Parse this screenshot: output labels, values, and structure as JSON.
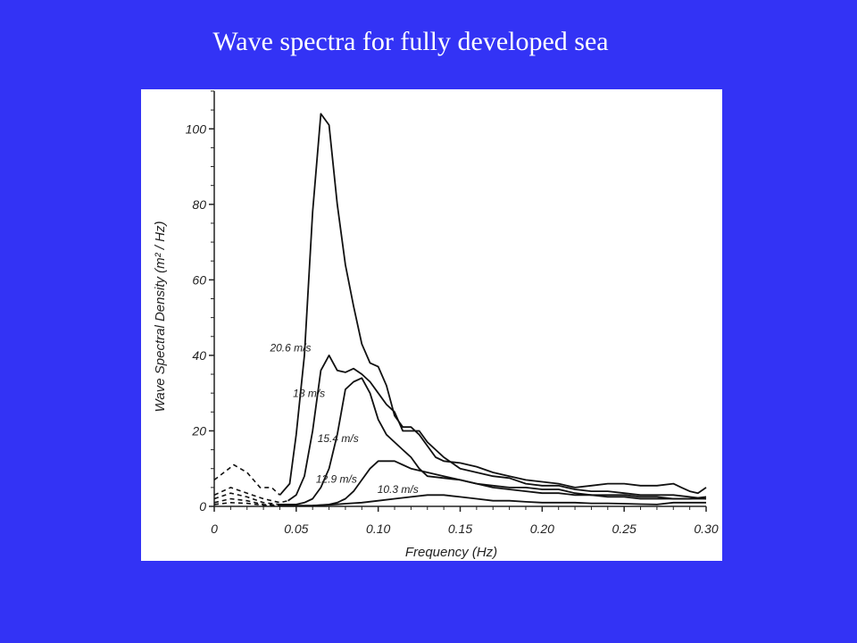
{
  "slide": {
    "title": "Wave spectra for fully developed sea",
    "background_color": "#3333f5"
  },
  "chart_data": {
    "type": "line",
    "title": "Wave spectra for fully developed sea",
    "xlabel": "Frequency (Hz)",
    "ylabel": "Wave Spectral Density (m² / Hz)",
    "xlim": [
      0,
      0.3
    ],
    "ylim": [
      0,
      110
    ],
    "x_ticks": [
      0,
      0.05,
      0.1,
      0.15,
      0.2,
      0.25,
      0.3
    ],
    "x_tick_labels": [
      "0",
      "0.05",
      "0.10",
      "0.15",
      "0.20",
      "0.25",
      "0.30"
    ],
    "y_ticks": [
      0,
      20,
      40,
      60,
      80,
      100
    ],
    "y_tick_labels": [
      "0",
      "20",
      "40",
      "60",
      "80",
      "100"
    ],
    "grid": false,
    "series": [
      {
        "name": "20.6 m/s",
        "dashed_until": 0.045,
        "x": [
          0,
          0.012,
          0.02,
          0.028,
          0.035,
          0.04,
          0.046,
          0.05,
          0.055,
          0.06,
          0.065,
          0.07,
          0.075,
          0.08,
          0.085,
          0.09,
          0.095,
          0.1,
          0.105,
          0.11,
          0.115,
          0.12,
          0.125,
          0.13,
          0.135,
          0.14,
          0.15,
          0.16,
          0.17,
          0.18,
          0.19,
          0.2,
          0.21,
          0.22,
          0.23,
          0.24,
          0.25,
          0.26,
          0.27,
          0.28,
          0.285,
          0.29,
          0.295,
          0.3
        ],
        "y": [
          7,
          11,
          9,
          5,
          5,
          3,
          6,
          19,
          40,
          78,
          104,
          101,
          80,
          64,
          53,
          43,
          38,
          37,
          32,
          24,
          21,
          21,
          19,
          16,
          13,
          12,
          11.5,
          10.5,
          9,
          8,
          7,
          6.5,
          6,
          5,
          5.5,
          6,
          6,
          5.5,
          5.5,
          6,
          5,
          4,
          3.5,
          5
        ]
      },
      {
        "name": "18 m/s",
        "dashed_until": 0.045,
        "x": [
          0,
          0.01,
          0.02,
          0.03,
          0.04,
          0.045,
          0.05,
          0.055,
          0.06,
          0.065,
          0.07,
          0.075,
          0.08,
          0.085,
          0.09,
          0.095,
          0.1,
          0.105,
          0.11,
          0.115,
          0.12,
          0.125,
          0.13,
          0.14,
          0.15,
          0.16,
          0.17,
          0.18,
          0.19,
          0.2,
          0.21,
          0.22,
          0.23,
          0.24,
          0.25,
          0.26,
          0.27,
          0.28,
          0.29,
          0.3
        ],
        "y": [
          3,
          5,
          3.5,
          2,
          1,
          1.5,
          3,
          8,
          20,
          36,
          40,
          36,
          35.5,
          36.5,
          35,
          33,
          30,
          27,
          25,
          20,
          20,
          20,
          17,
          13,
          10,
          9,
          8,
          7.5,
          6,
          5.5,
          5.5,
          4.5,
          4,
          4,
          3.5,
          3,
          3,
          3,
          2.5,
          2
        ]
      },
      {
        "name": "15.4 m/s",
        "dashed_until": 0.045,
        "x": [
          0,
          0.01,
          0.02,
          0.03,
          0.04,
          0.05,
          0.055,
          0.06,
          0.065,
          0.07,
          0.075,
          0.08,
          0.085,
          0.09,
          0.095,
          0.1,
          0.105,
          0.11,
          0.115,
          0.12,
          0.125,
          0.13,
          0.14,
          0.15,
          0.16,
          0.17,
          0.18,
          0.19,
          0.2,
          0.21,
          0.22,
          0.23,
          0.24,
          0.25,
          0.26,
          0.27,
          0.28,
          0.29,
          0.3
        ],
        "y": [
          2,
          3.5,
          2.5,
          1,
          0.5,
          0.5,
          1,
          2,
          5,
          10,
          19,
          31,
          33,
          34,
          30,
          23,
          19,
          17,
          15,
          13,
          10,
          8,
          7.5,
          7,
          6,
          5.5,
          5,
          5,
          4.5,
          4.5,
          3.5,
          3,
          3,
          3,
          2.5,
          2.5,
          2,
          2,
          2.5
        ]
      },
      {
        "name": "12.9 m/s",
        "dashed_until": 0.045,
        "x": [
          0,
          0.01,
          0.02,
          0.03,
          0.04,
          0.05,
          0.06,
          0.07,
          0.075,
          0.08,
          0.085,
          0.09,
          0.095,
          0.1,
          0.105,
          0.11,
          0.115,
          0.12,
          0.13,
          0.14,
          0.15,
          0.16,
          0.17,
          0.18,
          0.19,
          0.2,
          0.21,
          0.22,
          0.23,
          0.24,
          0.25,
          0.26,
          0.27,
          0.28,
          0.29,
          0.3
        ],
        "y": [
          1,
          2,
          1.5,
          0.5,
          0.3,
          0.2,
          0.2,
          0.5,
          1,
          2,
          4,
          7,
          10,
          12,
          12,
          12,
          11,
          10,
          9,
          8,
          7,
          6,
          5,
          4.5,
          4,
          3.5,
          3.5,
          3,
          3,
          2.5,
          2.5,
          2,
          2,
          2,
          2,
          2
        ]
      },
      {
        "name": "10.3 m/s",
        "dashed_until": 0.045,
        "x": [
          0,
          0.01,
          0.02,
          0.03,
          0.04,
          0.05,
          0.06,
          0.07,
          0.08,
          0.09,
          0.1,
          0.11,
          0.12,
          0.13,
          0.14,
          0.15,
          0.16,
          0.17,
          0.18,
          0.19,
          0.2,
          0.21,
          0.22,
          0.23,
          0.24,
          0.25,
          0.26,
          0.27,
          0.28,
          0.29,
          0.3
        ],
        "y": [
          0.5,
          1,
          0.8,
          0.3,
          0.1,
          0.1,
          0.2,
          0.4,
          0.7,
          1,
          1.5,
          2,
          2.5,
          3,
          3,
          2.5,
          2,
          1.5,
          1.5,
          1.2,
          1,
          1,
          1,
          0.8,
          0.8,
          0.7,
          0.6,
          0.5,
          1,
          1,
          1
        ]
      }
    ]
  }
}
